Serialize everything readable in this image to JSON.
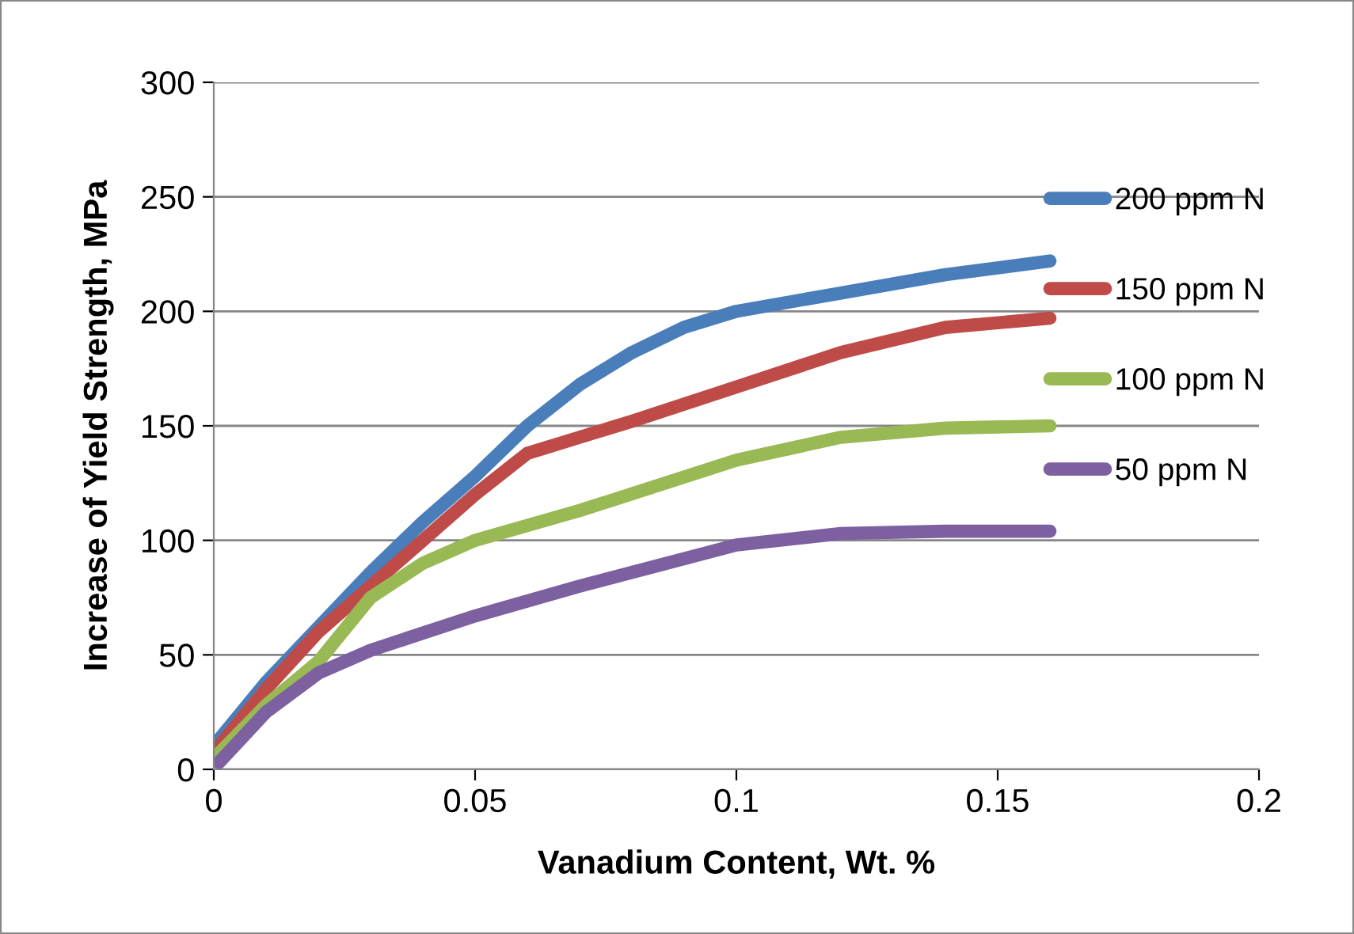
{
  "chart_data": {
    "type": "line",
    "xlabel": "Vanadium Content, Wt. %",
    "ylabel": "Increase of Yield Strength, MPa",
    "xlim": [
      0,
      0.2
    ],
    "xticks": [
      0,
      0.05,
      0.1,
      0.15,
      0.2
    ],
    "ylim": [
      0,
      300
    ],
    "yticks": [
      0,
      50,
      100,
      150,
      200,
      250,
      300
    ],
    "grid": "y",
    "legend": "right",
    "marker": "none",
    "line_style": "solid",
    "series": [
      {
        "name": "200 ppm N",
        "color": "#4a7ebb",
        "x": [
          0.001,
          0.01,
          0.02,
          0.03,
          0.04,
          0.05,
          0.06,
          0.07,
          0.08,
          0.09,
          0.1,
          0.12,
          0.14,
          0.16
        ],
        "values": [
          13,
          38,
          62,
          86,
          108,
          128,
          150,
          168,
          182,
          193,
          200,
          208,
          216,
          222
        ]
      },
      {
        "name": "150 ppm N",
        "color": "#be4b48",
        "x": [
          0.001,
          0.01,
          0.02,
          0.03,
          0.04,
          0.05,
          0.06,
          0.08,
          0.1,
          0.12,
          0.14,
          0.16
        ],
        "values": [
          10,
          35,
          60,
          80,
          100,
          120,
          138,
          152,
          167,
          182,
          193,
          197
        ]
      },
      {
        "name": "100 ppm N",
        "color": "#98b954",
        "x": [
          0.001,
          0.01,
          0.02,
          0.03,
          0.04,
          0.05,
          0.07,
          0.1,
          0.12,
          0.14,
          0.16
        ],
        "values": [
          7,
          28,
          47,
          75,
          90,
          100,
          113,
          135,
          145,
          149,
          150
        ]
      },
      {
        "name": "50 ppm N",
        "color": "#7d60a0",
        "x": [
          0.001,
          0.01,
          0.02,
          0.03,
          0.05,
          0.07,
          0.1,
          0.12,
          0.14,
          0.16
        ],
        "values": [
          3,
          25,
          42,
          52,
          67,
          80,
          98,
          103,
          104,
          104
        ]
      }
    ]
  }
}
